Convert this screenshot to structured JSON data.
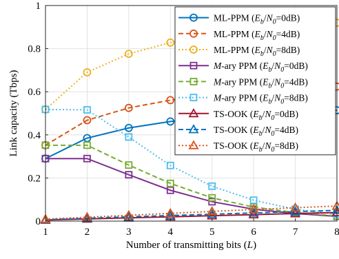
{
  "chart_data": {
    "type": "line",
    "title": "",
    "xlabel": "Number of transmitting bits (L)",
    "ylabel": "Link capacity (Tbps)",
    "x": [
      1,
      2,
      3,
      4,
      5,
      6,
      7,
      8
    ],
    "xlim": [
      1,
      8
    ],
    "ylim": [
      0,
      1
    ],
    "xticks": [
      "1",
      "2",
      "3",
      "4",
      "5",
      "6",
      "7",
      "8"
    ],
    "yticks": [
      "0",
      "0.2",
      "0.4",
      "0.6",
      "0.8",
      "1"
    ],
    "grid": true,
    "legend_position": "top-right",
    "series": [
      {
        "name": "ML-PPM (Eb/N0=0dB)",
        "color": "#0072BD",
        "dash": "solid",
        "marker": "circle",
        "values": [
          0.29,
          0.385,
          0.432,
          0.462,
          0.482,
          0.497,
          0.507,
          0.514
        ]
      },
      {
        "name": "ML-PPM (Eb/N0=4dB)",
        "color": "#D95319",
        "dash": "dashed",
        "marker": "circle",
        "values": [
          0.352,
          0.468,
          0.525,
          0.561,
          0.586,
          0.604,
          0.616,
          0.624
        ]
      },
      {
        "name": "ML-PPM (Eb/N0=8dB)",
        "color": "#EDB120",
        "dash": "dotted",
        "marker": "circle",
        "values": [
          0.518,
          0.69,
          0.776,
          0.828,
          0.862,
          0.888,
          0.906,
          0.92
        ]
      },
      {
        "name": "M-ary PPM (Eb/N0=0dB)",
        "color": "#7E2F8E",
        "dash": "solid",
        "marker": "square",
        "values": [
          0.29,
          0.29,
          0.215,
          0.143,
          0.09,
          0.055,
          0.035,
          0.022
        ]
      },
      {
        "name": "M-ary PPM (Eb/N0=4dB)",
        "color": "#77AC30",
        "dash": "dashed",
        "marker": "square",
        "values": [
          0.352,
          0.352,
          0.26,
          0.175,
          0.108,
          0.065,
          0.04,
          0.024
        ]
      },
      {
        "name": "M-ary PPM (Eb/N0=8dB)",
        "color": "#4DBEEE",
        "dash": "dotted",
        "marker": "square",
        "values": [
          0.518,
          0.516,
          0.39,
          0.258,
          0.162,
          0.097,
          0.055,
          0.032
        ]
      },
      {
        "name": "TS-OOK (Eb/N0=0dB)",
        "color": "#A2142F",
        "dash": "solid",
        "marker": "triangle",
        "values": [
          0.005,
          0.01,
          0.015,
          0.02,
          0.025,
          0.03,
          0.035,
          0.04
        ]
      },
      {
        "name": "TS-OOK (Eb/N0=4dB)",
        "color": "#0072BD",
        "dash": "dashed",
        "marker": "triangle",
        "values": [
          0.007,
          0.013,
          0.02,
          0.026,
          0.032,
          0.038,
          0.044,
          0.05
        ]
      },
      {
        "name": "TS-OOK (Eb/N0=8dB)",
        "color": "#D95319",
        "dash": "dotted",
        "marker": "triangle",
        "values": [
          0.009,
          0.018,
          0.027,
          0.036,
          0.045,
          0.054,
          0.062,
          0.07
        ]
      }
    ],
    "legend_entries": [
      {
        "prefix": "ML-PPM (",
        "italic_prefix": "",
        "eb": "E",
        "eb_sub": "b",
        "n0": "N",
        "n0_sub": "0",
        "suffix": "=0dB)"
      },
      {
        "prefix": "ML-PPM (",
        "italic_prefix": "",
        "eb": "E",
        "eb_sub": "b",
        "n0": "N",
        "n0_sub": "0",
        "suffix": "=4dB)"
      },
      {
        "prefix": "ML-PPM (",
        "italic_prefix": "",
        "eb": "E",
        "eb_sub": "b",
        "n0": "N",
        "n0_sub": "0",
        "suffix": "=8dB)"
      },
      {
        "prefix": "-ary PPM (",
        "italic_prefix": "M",
        "eb": "E",
        "eb_sub": "b",
        "n0": "N",
        "n0_sub": "0",
        "suffix": "=0dB)"
      },
      {
        "prefix": "-ary PPM (",
        "italic_prefix": "M",
        "eb": "E",
        "eb_sub": "b",
        "n0": "N",
        "n0_sub": "0",
        "suffix": "=4dB)"
      },
      {
        "prefix": "-ary PPM (",
        "italic_prefix": "M",
        "eb": "E",
        "eb_sub": "b",
        "n0": "N",
        "n0_sub": "0",
        "suffix": "=8dB)"
      },
      {
        "prefix": "TS-OOK (",
        "italic_prefix": "",
        "eb": "E",
        "eb_sub": "b",
        "n0": "N",
        "n0_sub": "0",
        "suffix": "=0dB)"
      },
      {
        "prefix": "TS-OOK (",
        "italic_prefix": "",
        "eb": "E",
        "eb_sub": "b",
        "n0": "N",
        "n0_sub": "0",
        "suffix": "=4dB)"
      },
      {
        "prefix": "TS-OOK (",
        "italic_prefix": "",
        "eb": "E",
        "eb_sub": "b",
        "n0": "N",
        "n0_sub": "0",
        "suffix": "=8dB)"
      }
    ],
    "xlabel_parts": {
      "main": "Number of transmitting bits (",
      "italic": "L",
      "end": ")"
    }
  }
}
